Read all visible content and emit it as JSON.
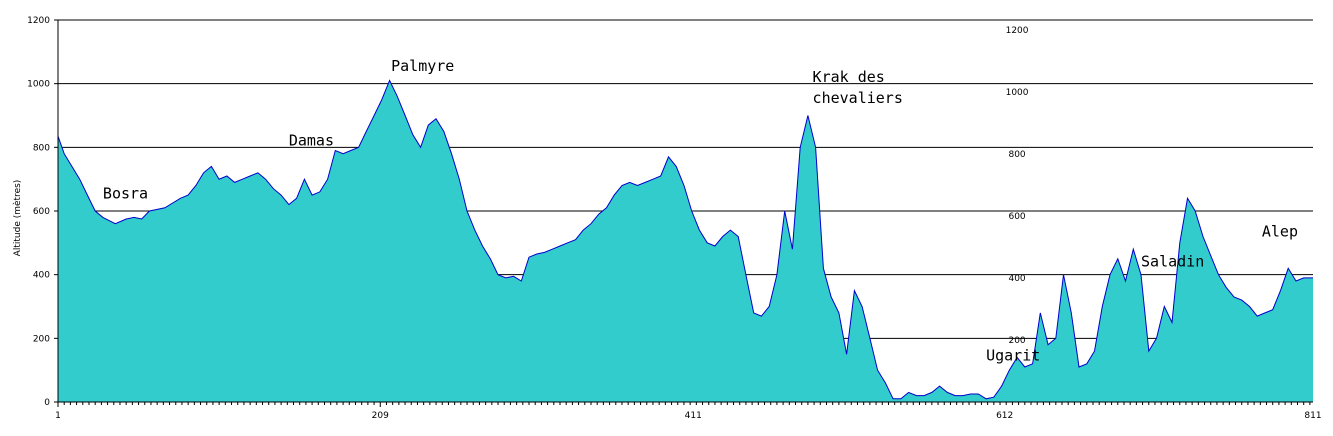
{
  "chart_data": {
    "type": "area",
    "title": "",
    "xlabel": "",
    "ylabel": "Altitude (mètres)",
    "ylim": [
      0,
      1200
    ],
    "xlim": [
      1,
      811
    ],
    "x_ticks": [
      {
        "label": "1",
        "value": 1
      },
      {
        "label": "209",
        "value": 209
      },
      {
        "label": "411",
        "value": 411
      },
      {
        "label": "612",
        "value": 612
      },
      {
        "label": "811",
        "value": 811
      }
    ],
    "y_ticks": [
      {
        "label": "0",
        "value": 0
      },
      {
        "label": "200",
        "value": 200
      },
      {
        "label": "400",
        "value": 400
      },
      {
        "label": "600",
        "value": 600
      },
      {
        "label": "800",
        "value": 800
      },
      {
        "label": "1000",
        "value": 1000
      },
      {
        "label": "1200",
        "value": 1200
      }
    ],
    "y_ticks_secondary": [
      {
        "label": "200",
        "value": 200
      },
      {
        "label": "400",
        "value": 400
      },
      {
        "label": "600",
        "value": 600
      },
      {
        "label": "800",
        "value": 800
      },
      {
        "label": "1000",
        "value": 1000
      },
      {
        "label": "1200",
        "value": 1200
      }
    ],
    "grid": "horizontal",
    "colors": {
      "fill": "#33CCCC",
      "line": "#0000CC",
      "grid": "#000000"
    },
    "series": [
      {
        "x": [
          1,
          5,
          10,
          15,
          20,
          25,
          30,
          38,
          45,
          50,
          55,
          60,
          65,
          70,
          75,
          80,
          85,
          90,
          95,
          100,
          105,
          110,
          115,
          120,
          125,
          130,
          135,
          140,
          145,
          150,
          155,
          160,
          165,
          170,
          175,
          180,
          185,
          190,
          195,
          200,
          205,
          210,
          215,
          220,
          225,
          230,
          235,
          240,
          245,
          250,
          255,
          260,
          265,
          270,
          275,
          280,
          285,
          290,
          295,
          300,
          305,
          310,
          315,
          320,
          325,
          330,
          335,
          340,
          345,
          350,
          355,
          360,
          365,
          370,
          375,
          380,
          385,
          390,
          395,
          400,
          405,
          410,
          415,
          420,
          425,
          430,
          435,
          440,
          445,
          450,
          455,
          460,
          465,
          470,
          475,
          480,
          485,
          490,
          495,
          500,
          505,
          510,
          515,
          520,
          525,
          530,
          535,
          540,
          545,
          550,
          555,
          560,
          565,
          570,
          575,
          580,
          585,
          590,
          595,
          600,
          605,
          610,
          615,
          620,
          625,
          630,
          635,
          640,
          645,
          650,
          655,
          660,
          665,
          670,
          675,
          680,
          685,
          690,
          695,
          700,
          705,
          710,
          715,
          720,
          725,
          730,
          735,
          740,
          745,
          750,
          755,
          760,
          765,
          770,
          775,
          780,
          785,
          790,
          795,
          800,
          805,
          811
        ],
        "y": [
          835,
          780,
          740,
          700,
          650,
          600,
          580,
          560,
          575,
          580,
          575,
          600,
          605,
          610,
          625,
          640,
          650,
          680,
          720,
          740,
          700,
          710,
          690,
          700,
          710,
          720,
          700,
          670,
          650,
          620,
          640,
          700,
          650,
          660,
          700,
          790,
          780,
          790,
          800,
          850,
          900,
          950,
          1010,
          960,
          900,
          840,
          800,
          870,
          890,
          850,
          780,
          700,
          600,
          540,
          490,
          450,
          400,
          390,
          395,
          380,
          455,
          465,
          470,
          480,
          490,
          500,
          510,
          540,
          560,
          590,
          610,
          650,
          680,
          690,
          680,
          690,
          700,
          710,
          770,
          740,
          680,
          600,
          540,
          500,
          490,
          520,
          540,
          520,
          400,
          280,
          270,
          300,
          400,
          600,
          480,
          800,
          900,
          800,
          420,
          330,
          280,
          150,
          350,
          300,
          200,
          100,
          60,
          10,
          10,
          30,
          20,
          20,
          30,
          50,
          30,
          20,
          20,
          25,
          25,
          10,
          15,
          50,
          100,
          140,
          110,
          120,
          280,
          180,
          200,
          400,
          280,
          110,
          120,
          160,
          300,
          400,
          450,
          380,
          480,
          400,
          160,
          200,
          300,
          250,
          500,
          640,
          600,
          520,
          460,
          400,
          360,
          330,
          320,
          300,
          270,
          280,
          290,
          350,
          420,
          380,
          390,
          390
        ]
      }
    ],
    "annotations": [
      {
        "text": "Bosra",
        "x": 30,
        "y": 640
      },
      {
        "text": "Damas",
        "x": 150,
        "y": 805
      },
      {
        "text": "Palmyre",
        "x": 216,
        "y": 1040
      },
      {
        "text": "Krak des",
        "x": 488,
        "y": 1005
      },
      {
        "text": "chevaliers",
        "x": 488,
        "y": 940
      },
      {
        "text": "Ugarit",
        "x": 600,
        "y": 130
      },
      {
        "text": "Saladin",
        "x": 700,
        "y": 425
      },
      {
        "text": "Alep",
        "x": 778,
        "y": 520
      }
    ]
  }
}
